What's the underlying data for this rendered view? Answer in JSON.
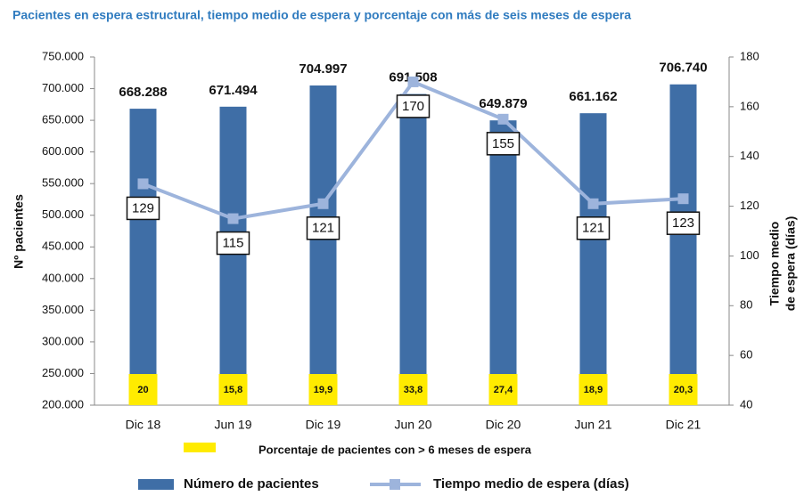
{
  "chart_data": {
    "type": "bar",
    "title": "Pacientes en espera estructural, tiempo medio de espera  y porcentaje con más de seis meses de espera",
    "categories": [
      "Dic 18",
      "Jun 19",
      "Dic 19",
      "Jun 20",
      "Dic 20",
      "Jun 21",
      "Dic 21"
    ],
    "series": [
      {
        "name": "Número de pacientes",
        "type": "bar",
        "color": "#3f6ea6",
        "values": [
          668288,
          671494,
          704997,
          691508,
          649879,
          661162,
          706740
        ],
        "value_labels": [
          "668.288",
          "671.494",
          "704.997",
          "691.508",
          "649.879",
          "661.162",
          "706.740"
        ]
      },
      {
        "name": "Tiempo medio de espera (días)",
        "type": "line",
        "axis": "y2",
        "color": "#9db4dc",
        "values": [
          129,
          115,
          121,
          170,
          155,
          121,
          123
        ]
      },
      {
        "name": "Porcentaje de pacientes con > 6 meses  de espera",
        "type": "label-box",
        "color": "#ffeb00",
        "values": [
          20,
          15.8,
          19.9,
          33.8,
          27.4,
          18.9,
          20.3
        ],
        "value_labels": [
          "20",
          "15,8",
          "19,9",
          "33,8",
          "27,4",
          "18,9",
          "20,3"
        ]
      }
    ],
    "ylabel": "Nº pacientes",
    "y2label": [
      "Tiempo medio",
      "de espera (días)"
    ],
    "ylim": [
      200000,
      750000
    ],
    "yticks": [
      {
        "value": 200000,
        "label": "200.000"
      },
      {
        "value": 250000,
        "label": "250.000"
      },
      {
        "value": 300000,
        "label": "300.000"
      },
      {
        "value": 350000,
        "label": "350.000"
      },
      {
        "value": 400000,
        "label": "400.000"
      },
      {
        "value": 450000,
        "label": "450.000"
      },
      {
        "value": 500000,
        "label": "500.000"
      },
      {
        "value": 550000,
        "label": "550.000"
      },
      {
        "value": 600000,
        "label": "600.000"
      },
      {
        "value": 650000,
        "label": "650.000"
      },
      {
        "value": 700000,
        "label": "700.000"
      },
      {
        "value": 750000,
        "label": "750.000"
      }
    ],
    "y2lim": [
      40,
      180
    ],
    "y2ticks": [
      40,
      60,
      80,
      100,
      120,
      140,
      160,
      180
    ],
    "grid": false
  }
}
